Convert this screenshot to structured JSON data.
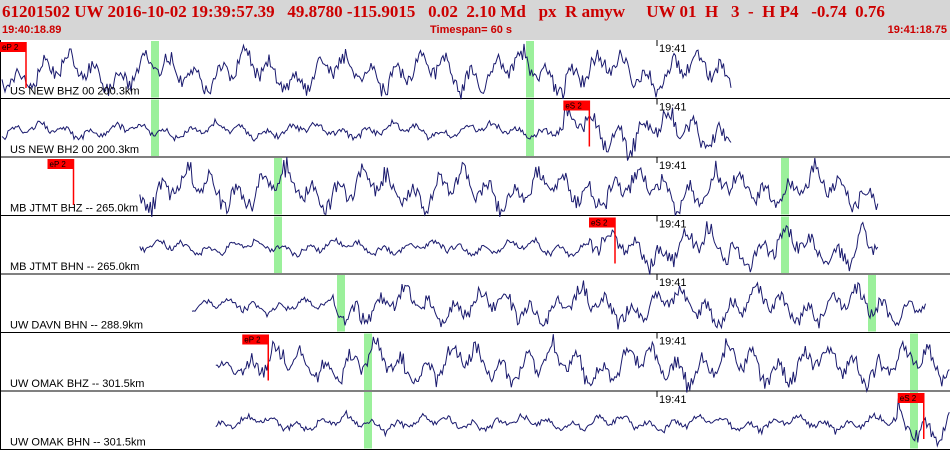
{
  "header": {
    "event_line": "61201502 UW 2016-10-02 19:39:57.39   49.8780 -115.9015   0.02  2.10 Md   px  R amyw     UW 01  H   3  -  H P4   -0.74  0.76",
    "time_start": "19:40:18.89",
    "timespan": "Timespan=  60 s",
    "time_end": "19:41:18.75"
  },
  "colors": {
    "trace": "#1a1a6e",
    "pick_flag": "#ff0000",
    "phase_window": "#90ee90",
    "header_bg": "#d6d6d6",
    "header_text": "#cc0000"
  },
  "panels": [
    {
      "label": "US NEW BHZ 00 200.3km",
      "minute_label": "19:41",
      "pick": {
        "name": "eP 2",
        "t": 0.0
      },
      "highlights": [
        0.255,
        0.88
      ],
      "trace_start": 0.0,
      "trace_end": 0.77
    },
    {
      "label": "US NEW BH2 00 200.3km",
      "minute_label": "19:41",
      "pick": {
        "name": "eS 2",
        "t": 0.593
      },
      "highlights": [
        0.255,
        0.88
      ],
      "trace_start": 0.0,
      "trace_end": 0.77
    },
    {
      "label": "MB JTMT BHZ -- 265.0km",
      "minute_label": "19:41",
      "pick": {
        "name": "eP 2",
        "t": 0.05
      },
      "highlights": [
        0.46,
        1.305
      ],
      "trace_start": 0.145,
      "trace_end": 0.925
    },
    {
      "label": "MB JTMT BHN -- 265.0km",
      "minute_label": "19:41",
      "pick": {
        "name": "eS 2",
        "t": 0.62
      },
      "highlights": [
        0.46,
        1.305
      ],
      "trace_start": 0.145,
      "trace_end": 0.925
    },
    {
      "label": "UW DAVN BHN -- 288.9km",
      "minute_label": "19:41",
      "pick": null,
      "highlights": [
        0.565,
        1.45
      ],
      "trace_start": 0.2,
      "trace_end": 0.975
    },
    {
      "label": "UW OMAK BHZ -- 301.5km",
      "minute_label": "19:41",
      "pick": {
        "name": "eP 2",
        "t": 0.255
      },
      "highlights": [
        0.61,
        1.52
      ],
      "trace_start": 0.225,
      "trace_end": 1.0
    },
    {
      "label": "UW OMAK BHN -- 301.5km",
      "minute_label": "19:41",
      "pick": {
        "name": "eS 2",
        "t": 0.945
      },
      "highlights": [
        0.61,
        1.52
      ],
      "trace_start": 0.225,
      "trace_end": 1.0
    }
  ]
}
